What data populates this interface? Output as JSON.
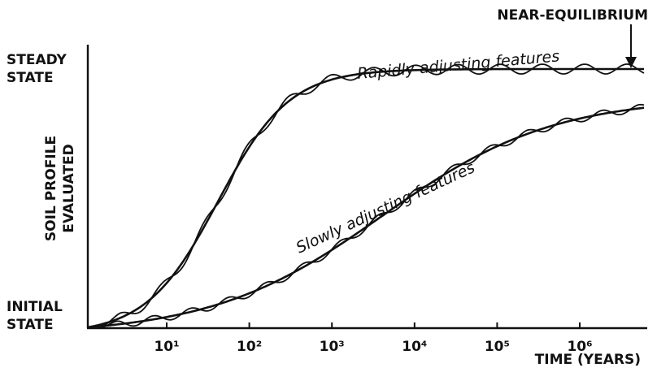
{
  "annotation": "NEAR-EQUILIBRIUM",
  "y_axis": {
    "top_label": [
      "STEADY",
      "STATE"
    ],
    "bottom_label": [
      "INITIAL",
      "STATE"
    ],
    "title": [
      "SOIL PROFILE",
      "EVALUATED"
    ]
  },
  "x_axis": {
    "ticks": [
      "10¹",
      "10²",
      "10³",
      "10⁴",
      "10⁵",
      "10⁶"
    ],
    "title": "TIME (YEARS)"
  },
  "curves": [
    {
      "label": "Rapidly adjusting features"
    },
    {
      "label": "Slowly adjusting features"
    }
  ]
}
